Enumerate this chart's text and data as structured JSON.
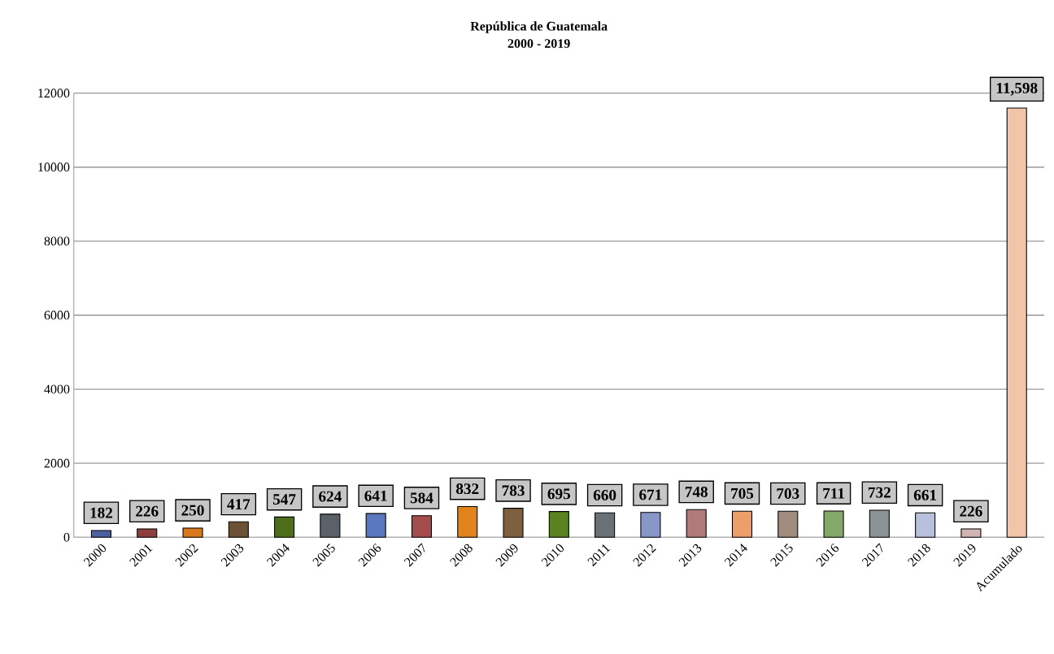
{
  "chart_data": {
    "type": "bar",
    "title": "República de Guatemala",
    "subtitle": "2000 - 2019",
    "categories": [
      "2000",
      "2001",
      "2002",
      "2003",
      "2004",
      "2005",
      "2006",
      "2007",
      "2008",
      "2009",
      "2010",
      "2011",
      "2012",
      "2013",
      "2014",
      "2015",
      "2016",
      "2017",
      "2018",
      "2019",
      "Acumulado"
    ],
    "values": [
      182,
      226,
      250,
      417,
      547,
      624,
      641,
      584,
      832,
      783,
      695,
      660,
      671,
      748,
      705,
      703,
      711,
      732,
      661,
      226,
      11598
    ],
    "value_labels": [
      "182",
      "226",
      "250",
      "417",
      "547",
      "624",
      "641",
      "584",
      "832",
      "783",
      "695",
      "660",
      "671",
      "748",
      "705",
      "703",
      "711",
      "732",
      "661",
      "226",
      "11,598"
    ],
    "colors": [
      "#4a62a0",
      "#8e3e3e",
      "#d9781c",
      "#6b5236",
      "#4e6e1e",
      "#5a6268",
      "#5a78be",
      "#a44c4c",
      "#e2841e",
      "#7e6040",
      "#5a8220",
      "#6a7278",
      "#8896c8",
      "#b07a7a",
      "#ee9e68",
      "#a08c7c",
      "#84a86a",
      "#8a9294",
      "#b8c0dc",
      "#d2b4b4",
      "#f2c4a8"
    ],
    "ylim": [
      0,
      12000
    ],
    "yticks": [
      0,
      2000,
      4000,
      6000,
      8000,
      10000,
      12000
    ],
    "grid": "y"
  }
}
